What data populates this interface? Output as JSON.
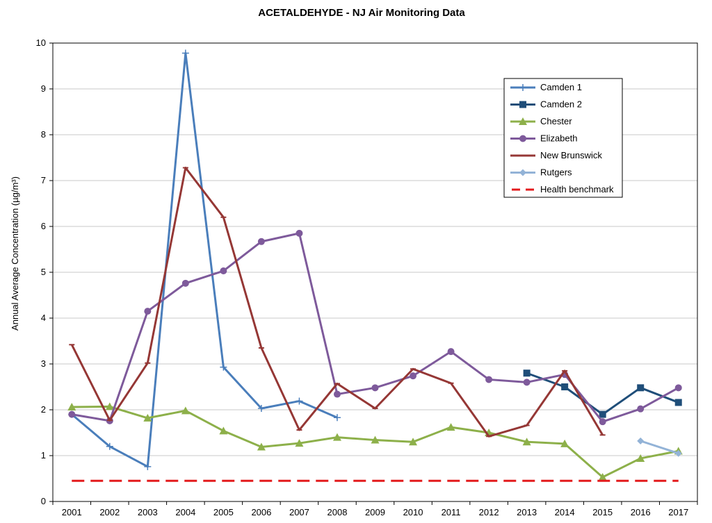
{
  "chart_data": {
    "type": "line",
    "title": "ACETALDEHYDE - NJ Air Monitoring Data",
    "xlabel": "",
    "ylabel": "Annual Average Concentration (µg/m³)",
    "ylim": [
      0,
      10
    ],
    "yticks": [
      0,
      1,
      2,
      3,
      4,
      5,
      6,
      7,
      8,
      9,
      10
    ],
    "x": [
      "2001",
      "2002",
      "2003",
      "2004",
      "2005",
      "2006",
      "2007",
      "2008",
      "2009",
      "2010",
      "2011",
      "2012",
      "2013",
      "2014",
      "2015",
      "2016",
      "2017"
    ],
    "grid": "horizontal",
    "legend_position": "top-right",
    "series": [
      {
        "name": "Camden 1",
        "color": "#4a7ebb",
        "marker": "plus",
        "values": [
          1.9,
          1.2,
          0.76,
          9.78,
          2.93,
          2.03,
          2.19,
          1.83,
          null,
          null,
          null,
          null,
          null,
          null,
          null,
          null,
          null
        ]
      },
      {
        "name": "Camden 2",
        "color": "#1f4e79",
        "marker": "square",
        "values": [
          null,
          null,
          null,
          null,
          null,
          null,
          null,
          null,
          null,
          null,
          null,
          null,
          2.8,
          2.5,
          1.9,
          2.48,
          2.16
        ]
      },
      {
        "name": "Chester",
        "color": "#8db04a",
        "marker": "triangle",
        "values": [
          2.06,
          2.07,
          1.82,
          1.98,
          1.54,
          1.19,
          1.27,
          1.4,
          1.34,
          1.3,
          1.62,
          1.5,
          1.3,
          1.26,
          0.53,
          0.94,
          1.1
        ]
      },
      {
        "name": "Elizabeth",
        "color": "#7e5a9b",
        "marker": "circle",
        "values": [
          1.9,
          1.76,
          4.15,
          4.76,
          5.03,
          5.67,
          5.85,
          2.34,
          2.48,
          2.74,
          3.27,
          2.66,
          2.6,
          2.77,
          1.74,
          2.02,
          2.48
        ]
      },
      {
        "name": "New Brunswick",
        "color": "#953735",
        "marker": "dash",
        "values": [
          3.42,
          1.77,
          3.02,
          7.28,
          6.2,
          3.35,
          1.56,
          2.57,
          2.03,
          2.89,
          2.58,
          1.42,
          1.66,
          2.85,
          1.45,
          null,
          null
        ]
      },
      {
        "name": "Rutgers",
        "color": "#93b3d7",
        "marker": "diamond",
        "values": [
          null,
          null,
          null,
          null,
          null,
          null,
          null,
          null,
          null,
          null,
          null,
          null,
          null,
          null,
          null,
          1.32,
          1.05
        ]
      },
      {
        "name": "Health benchmark",
        "color": "#e31a1c",
        "marker": "none",
        "dashed": true,
        "values": [
          0.45,
          0.45,
          0.45,
          0.45,
          0.45,
          0.45,
          0.45,
          0.45,
          0.45,
          0.45,
          0.45,
          0.45,
          0.45,
          0.45,
          0.45,
          0.45,
          0.45
        ]
      }
    ]
  }
}
